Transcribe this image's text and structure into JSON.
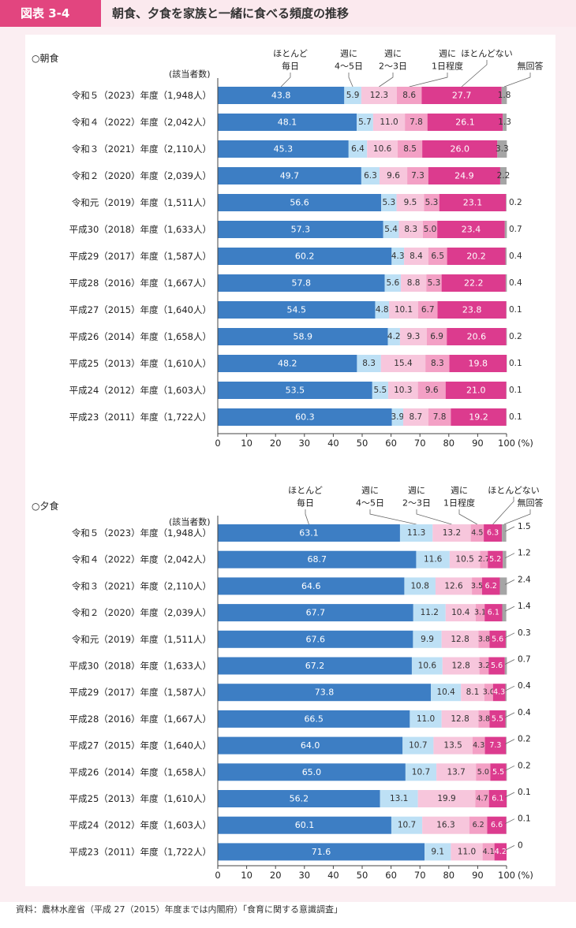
{
  "header": {
    "figure_label": "図表 3-4",
    "title": "朝食、夕食を家族と一緒に食べる頻度の推移"
  },
  "source": "資料：農林水産省（平成 27（2015）年度までは内閣府）「食育に関する意識調査」",
  "colors": {
    "c0": "#3d7ec4",
    "c1": "#bde0f5",
    "c2": "#f7c6dc",
    "c3": "#f3a0c5",
    "c4": "#dc3b8e",
    "c5": "#a5a5a5"
  },
  "chart_data": [
    {
      "type": "bar",
      "orientation": "horizontal-stacked",
      "title": "○朝食",
      "count_header": "(該当者数)",
      "xlim": [
        0,
        100
      ],
      "x_ticks": [
        "0",
        "10",
        "20",
        "30",
        "40",
        "50",
        "60",
        "70",
        "80",
        "90",
        "100"
      ],
      "x_unit": "(%)",
      "legend": [
        {
          "lines": [
            "ほとんど",
            "毎日"
          ]
        },
        {
          "lines": [
            "週に",
            "4～5日"
          ]
        },
        {
          "lines": [
            "週に",
            "2～3日"
          ]
        },
        {
          "lines": [
            "週に",
            "1日程度"
          ]
        },
        {
          "lines": [
            "ほとんどない"
          ]
        },
        {
          "lines": [
            "無回答"
          ]
        }
      ],
      "categories": [
        "令和５（2023）年度（1,948人）",
        "令和４（2022）年度（2,042人）",
        "令和３（2021）年度（2,110人）",
        "令和２（2020）年度（2,039人）",
        "令和元（2019）年度（1,511人）",
        "平成30（2018）年度（1,633人）",
        "平成29（2017）年度（1,587人）",
        "平成28（2016）年度（1,667人）",
        "平成27（2015）年度（1,640人）",
        "平成26（2014）年度（1,658人）",
        "平成25（2013）年度（1,610人）",
        "平成24（2012）年度（1,603人）",
        "平成23（2011）年度（1,722人）"
      ],
      "series": [
        {
          "name": "ほとんど毎日",
          "values": [
            43.8,
            48.1,
            45.3,
            49.7,
            56.6,
            57.3,
            60.2,
            57.8,
            54.5,
            58.9,
            48.2,
            53.5,
            60.3
          ]
        },
        {
          "name": "週に4～5日",
          "values": [
            5.9,
            5.7,
            6.4,
            6.3,
            5.3,
            5.4,
            4.3,
            5.6,
            4.8,
            4.2,
            8.3,
            5.5,
            3.9
          ]
        },
        {
          "name": "週に2～3日",
          "values": [
            12.3,
            11.0,
            10.6,
            9.6,
            9.5,
            8.3,
            8.4,
            8.8,
            10.1,
            9.3,
            15.4,
            10.3,
            8.7
          ]
        },
        {
          "name": "週に1日程度",
          "values": [
            8.6,
            7.8,
            8.5,
            7.3,
            5.3,
            5.0,
            6.5,
            5.3,
            6.7,
            6.9,
            8.3,
            9.6,
            7.8
          ]
        },
        {
          "name": "ほとんどない",
          "values": [
            27.7,
            26.1,
            26.0,
            24.9,
            23.1,
            23.4,
            20.2,
            22.2,
            23.8,
            20.6,
            19.8,
            21.0,
            19.2
          ]
        },
        {
          "name": "無回答",
          "values": [
            1.8,
            1.3,
            3.3,
            2.2,
            0.2,
            0.7,
            0.4,
            0.4,
            0.1,
            0.2,
            0.1,
            0.1,
            0.1
          ]
        }
      ]
    },
    {
      "type": "bar",
      "orientation": "horizontal-stacked",
      "title": "○夕食",
      "count_header": "(該当者数)",
      "xlim": [
        0,
        100
      ],
      "x_ticks": [
        "0",
        "10",
        "20",
        "30",
        "40",
        "50",
        "60",
        "70",
        "80",
        "90",
        "100"
      ],
      "x_unit": "(%)",
      "legend": [
        {
          "lines": [
            "ほとんど",
            "毎日"
          ]
        },
        {
          "lines": [
            "週に",
            "4～5日"
          ]
        },
        {
          "lines": [
            "週に",
            "2～3日"
          ]
        },
        {
          "lines": [
            "週に",
            "1日程度"
          ]
        },
        {
          "lines": [
            "ほとんどない"
          ]
        },
        {
          "lines": [
            "無回答"
          ]
        }
      ],
      "categories": [
        "令和５（2023）年度（1,948人）",
        "令和４（2022）年度（2,042人）",
        "令和３（2021）年度（2,110人）",
        "令和２（2020）年度（2,039人）",
        "令和元（2019）年度（1,511人）",
        "平成30（2018）年度（1,633人）",
        "平成29（2017）年度（1,587人）",
        "平成28（2016）年度（1,667人）",
        "平成27（2015）年度（1,640人）",
        "平成26（2014）年度（1,658人）",
        "平成25（2013）年度（1,610人）",
        "平成24（2012）年度（1,603人）",
        "平成23（2011）年度（1,722人）"
      ],
      "series": [
        {
          "name": "ほとんど毎日",
          "values": [
            63.1,
            68.7,
            64.6,
            67.7,
            67.6,
            67.2,
            73.8,
            66.5,
            64.0,
            65.0,
            56.2,
            60.1,
            71.6
          ]
        },
        {
          "name": "週に4～5日",
          "values": [
            11.3,
            11.6,
            10.8,
            11.2,
            9.9,
            10.6,
            10.4,
            11.0,
            10.7,
            10.7,
            13.1,
            10.7,
            9.1
          ]
        },
        {
          "name": "週に2～3日",
          "values": [
            13.2,
            10.5,
            12.6,
            10.4,
            12.8,
            12.8,
            8.1,
            12.8,
            13.5,
            13.7,
            19.9,
            16.3,
            11.0
          ]
        },
        {
          "name": "週に1日程度",
          "values": [
            4.5,
            2.7,
            3.5,
            3.1,
            3.8,
            3.2,
            3.0,
            3.8,
            4.3,
            5.0,
            4.7,
            6.2,
            4.1
          ]
        },
        {
          "name": "ほとんどない",
          "values": [
            6.3,
            5.2,
            6.2,
            6.1,
            5.6,
            5.6,
            4.3,
            5.5,
            7.3,
            5.5,
            6.1,
            6.6,
            4.2
          ]
        },
        {
          "name": "無回答",
          "values": [
            1.5,
            1.2,
            2.4,
            1.4,
            0.3,
            0.7,
            0.4,
            0.4,
            0.2,
            0.2,
            0.1,
            0.1,
            0.0
          ]
        }
      ],
      "na_labels": [
        "1.5",
        "1.2",
        "2.4",
        "1.4",
        "0.3",
        "0.7",
        "0.4",
        "0.4",
        "0.2",
        "0.2",
        "0.1",
        "0.1",
        "0"
      ]
    }
  ]
}
